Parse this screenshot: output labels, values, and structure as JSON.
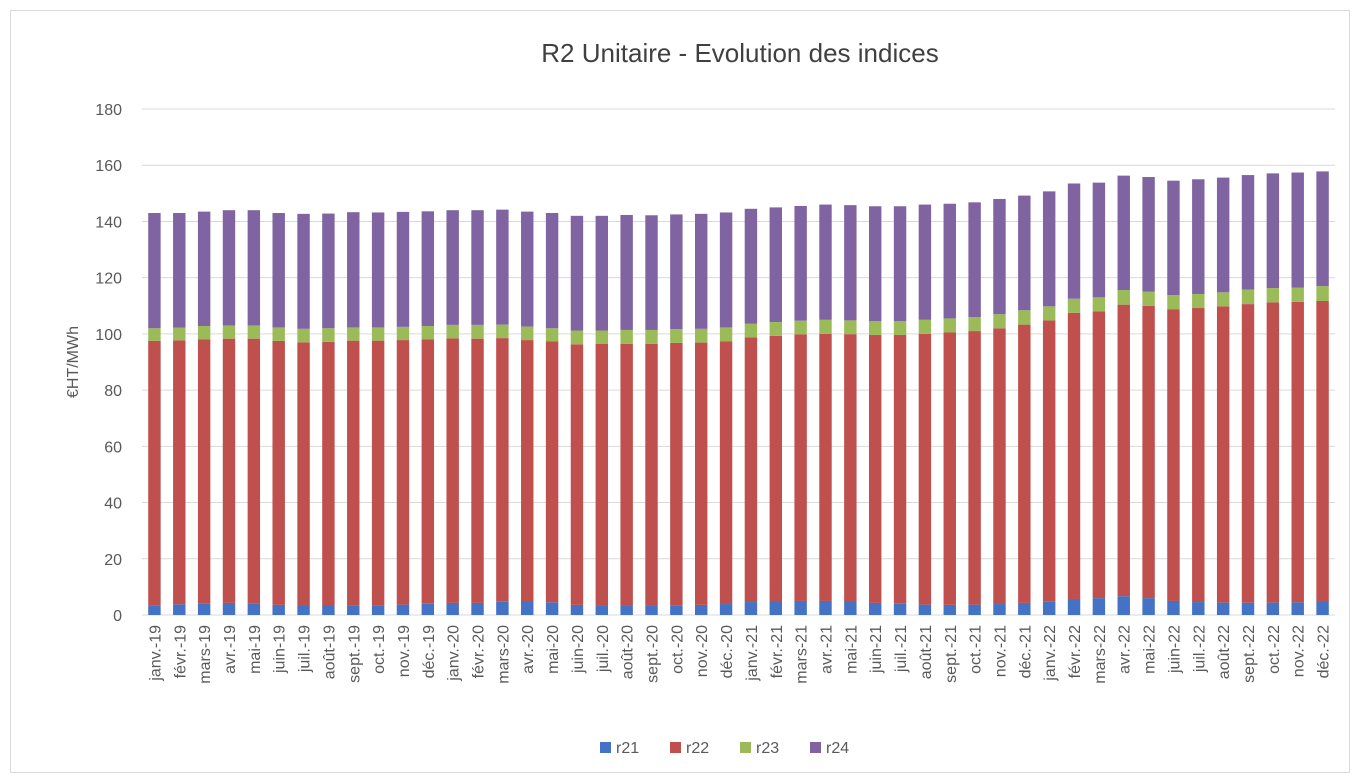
{
  "chart_data": {
    "type": "stacked_bar",
    "title": "R2 Unitaire - Evolution des indices",
    "y_label": "€HT/MWh",
    "categories": [
      "janv.-19",
      "févr.-19",
      "mars-19",
      "avr.-19",
      "mai-19",
      "juin-19",
      "juil.-19",
      "août-19",
      "sept.-19",
      "oct.-19",
      "nov.-19",
      "déc.-19",
      "janv.-20",
      "févr.-20",
      "mars-20",
      "avr.-20",
      "mai-20",
      "juin-20",
      "juil.-20",
      "août-20",
      "sept.-20",
      "oct.-20",
      "nov.-20",
      "déc.-20",
      "janv.-21",
      "févr.-21",
      "mars-21",
      "avr.-21",
      "mai-21",
      "juin-21",
      "juil.-21",
      "août-21",
      "sept.-21",
      "oct.-21",
      "nov.-21",
      "déc.-21",
      "janv.-22",
      "févr.-22",
      "mars-22",
      "avr.-22",
      "mai-22",
      "juin-22",
      "juil.-22",
      "août-22",
      "sept.-22",
      "oct.-22",
      "nov.-22",
      "déc.-22"
    ],
    "series": [
      {
        "name": "r21",
        "color": "#4472c4",
        "values": [
          3.5,
          3.8,
          4.2,
          4.3,
          4.2,
          3.6,
          3.2,
          3.2,
          3.5,
          3.5,
          3.7,
          4.0,
          4.3,
          4.3,
          4.7,
          4.8,
          4.5,
          3.6,
          3.4,
          3.4,
          3.4,
          3.5,
          3.6,
          3.9,
          4.6,
          4.8,
          5.0,
          5.0,
          4.8,
          4.3,
          4.0,
          3.7,
          3.6,
          3.7,
          3.9,
          4.3,
          4.9,
          5.7,
          6.0,
          6.7,
          6.0,
          5.0,
          4.6,
          4.4,
          4.4,
          4.4,
          4.5,
          4.8
        ]
      },
      {
        "name": "r22",
        "color": "#c0504d",
        "values": [
          94.0,
          93.9,
          93.8,
          94.0,
          94.1,
          93.9,
          93.8,
          94.0,
          94.1,
          94.1,
          94.1,
          94.0,
          94.1,
          94.0,
          93.8,
          93.0,
          92.8,
          92.7,
          93.0,
          93.1,
          93.1,
          93.3,
          93.3,
          93.4,
          94.2,
          94.5,
          94.8,
          95.0,
          95.1,
          95.3,
          95.6,
          96.3,
          96.9,
          97.3,
          98.1,
          99.0,
          99.9,
          101.8,
          102.0,
          103.7,
          104.0,
          103.8,
          104.6,
          105.4,
          106.2,
          106.8,
          106.9,
          106.9
        ]
      },
      {
        "name": "r23",
        "color": "#9bbb59",
        "values": [
          4.5,
          4.5,
          4.8,
          4.7,
          4.7,
          4.8,
          4.8,
          4.8,
          4.7,
          4.7,
          4.7,
          4.8,
          4.8,
          4.9,
          4.8,
          4.8,
          4.7,
          4.9,
          4.8,
          4.9,
          4.9,
          4.9,
          4.9,
          5.0,
          4.8,
          4.9,
          4.9,
          5.0,
          4.9,
          4.9,
          4.9,
          5.0,
          5.0,
          5.0,
          5.0,
          5.1,
          5.0,
          5.0,
          5.0,
          5.2,
          5.0,
          5.0,
          5.0,
          5.0,
          5.2,
          5.1,
          5.1,
          5.3
        ]
      },
      {
        "name": "r24",
        "color": "#8064a2",
        "values": [
          41.0,
          40.8,
          40.7,
          41.0,
          41.0,
          40.7,
          40.9,
          40.8,
          41.0,
          40.9,
          40.9,
          40.8,
          40.8,
          40.8,
          40.9,
          40.9,
          41.0,
          40.8,
          40.8,
          40.9,
          40.8,
          40.8,
          40.9,
          40.9,
          40.9,
          40.8,
          40.8,
          41.0,
          41.0,
          40.9,
          40.9,
          41.0,
          40.8,
          40.8,
          41.0,
          40.8,
          40.9,
          41.0,
          40.8,
          40.7,
          40.8,
          40.7,
          40.8,
          40.8,
          40.7,
          40.8,
          40.9,
          40.8
        ]
      }
    ],
    "ylim": [
      0,
      180
    ],
    "yticks": [
      0,
      20,
      40,
      60,
      80,
      100,
      120,
      140,
      160,
      180
    ],
    "grid": true,
    "legend": "bottom"
  }
}
